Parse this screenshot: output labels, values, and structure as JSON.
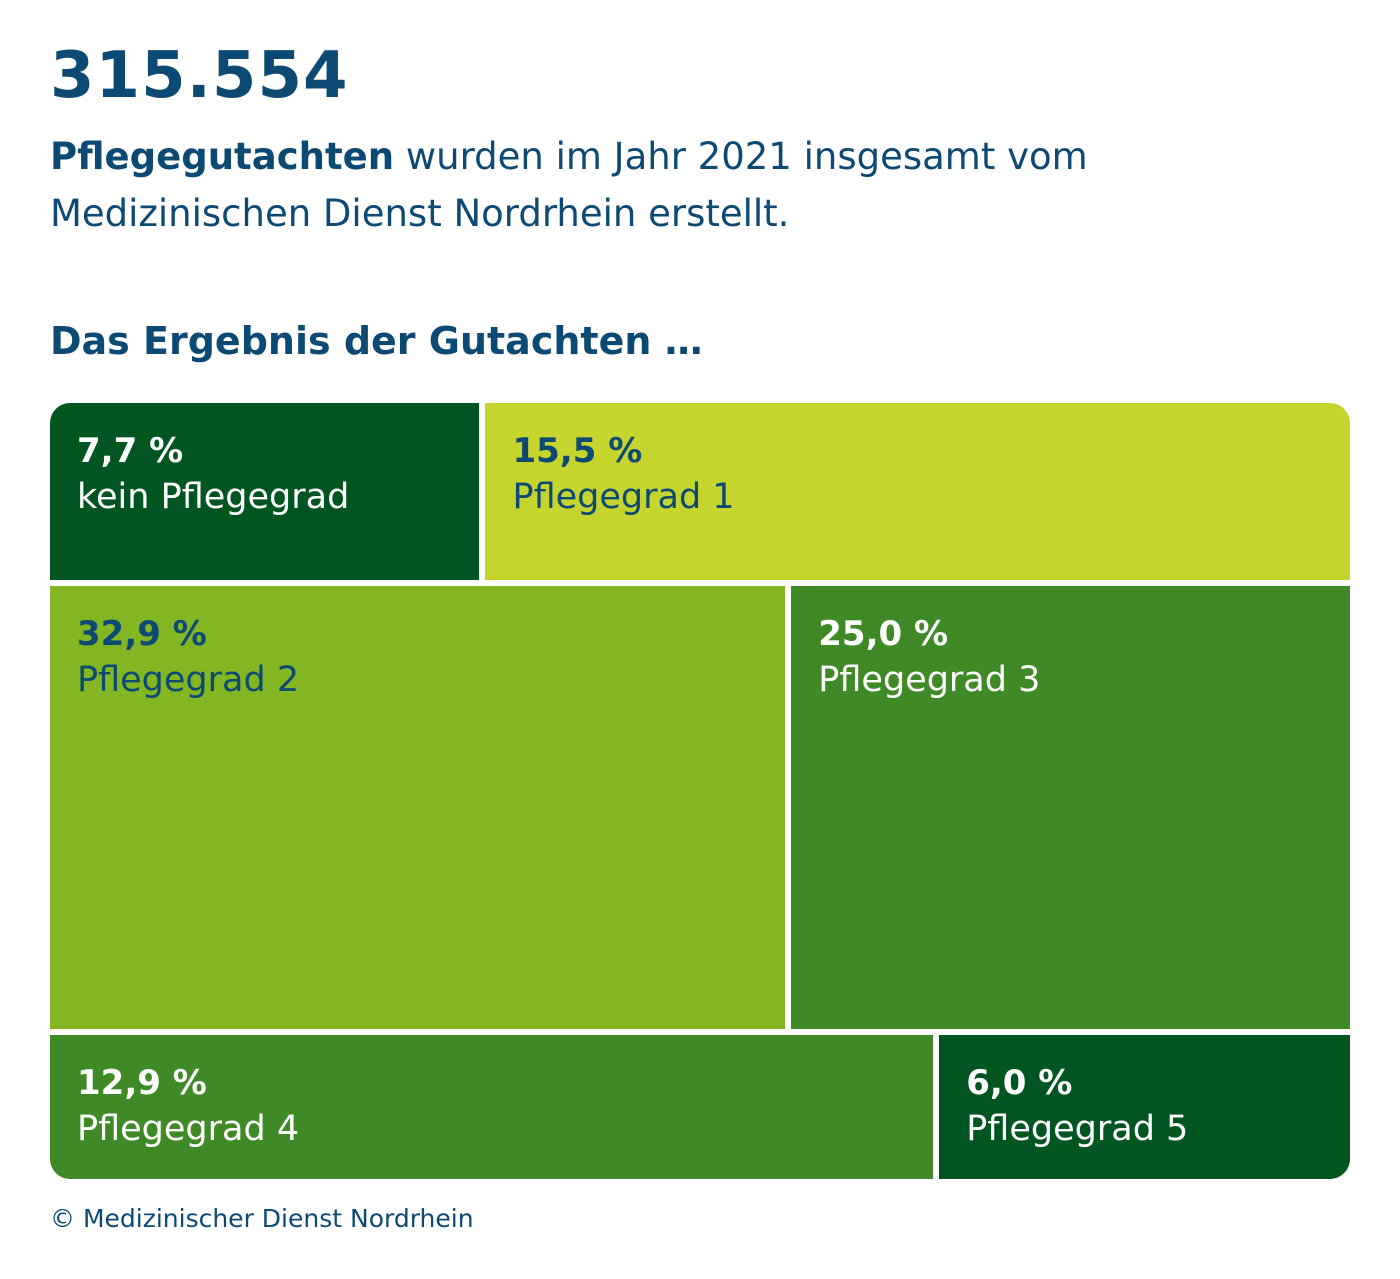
{
  "headline": {
    "number": "315.554",
    "bold_text": "Pflegegutachten",
    "text_line1": " wurden im Jahr 2021 insgesamt vom",
    "text_line2": "Medizinischen Dienst Nordrhein erstellt."
  },
  "chart_data": {
    "type": "treemap",
    "title": "Das Ergebnis der Gutachten …",
    "unit": "%",
    "total_count": 315554,
    "rows": [
      [
        {
          "label": "kein Pflegegrad",
          "value": 7.7,
          "display": "7,7 %",
          "color": "#005520",
          "text_color": "#ffffff"
        },
        {
          "label": "Pflegegrad 1",
          "value": 15.5,
          "display": "15,5 %",
          "color": "#c6d42e",
          "text_color": "#0d4a73"
        }
      ],
      [
        {
          "label": "Pflegegrad 2",
          "value": 32.9,
          "display": "32,9 %",
          "color": "#84b522",
          "text_color": "#0d4a73"
        },
        {
          "label": "Pflegegrad 3",
          "value": 25.0,
          "display": "25,0 %",
          "color": "#3f8a27",
          "text_color": "#ffffff"
        }
      ],
      [
        {
          "label": "Pflegegrad 4",
          "value": 12.9,
          "display": "12,9 %",
          "color": "#3f8a27",
          "text_color": "#ffffff"
        },
        {
          "label": "Pflegegrad 5",
          "value": 6.0,
          "display": "6,0 %",
          "color": "#005520",
          "text_color": "#ffffff"
        }
      ]
    ]
  },
  "footer": {
    "copyright": "© Medizinischer Dienst Nordrhein"
  }
}
